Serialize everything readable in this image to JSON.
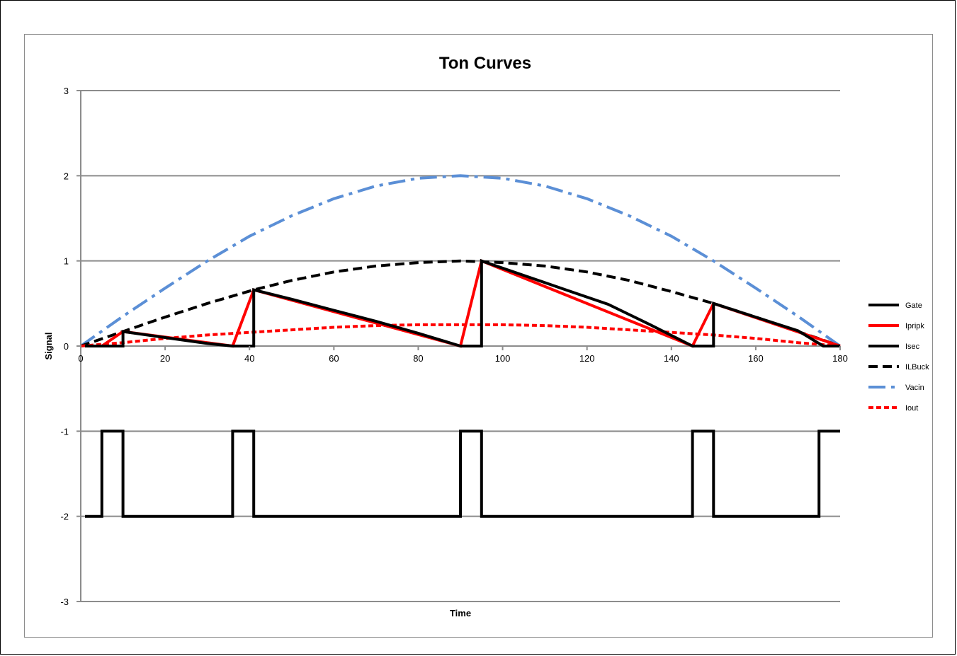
{
  "chart_data": {
    "type": "line",
    "title": "Ton Curves",
    "xlabel": "Time",
    "ylabel": "Signal",
    "xlim": [
      0,
      180
    ],
    "ylim": [
      -3,
      3
    ],
    "x_ticks": [
      0,
      20,
      40,
      60,
      80,
      100,
      120,
      140,
      160,
      180
    ],
    "y_ticks": [
      -3,
      -2,
      -1,
      0,
      1,
      2,
      3
    ],
    "grid": "horizontal",
    "legend_position": "right",
    "series": [
      {
        "name": "Gate",
        "color": "#000000",
        "style": "solid",
        "x": [
          1,
          5,
          5,
          10,
          10,
          36,
          36,
          41,
          41,
          90,
          90,
          95,
          95,
          145,
          145,
          150,
          150,
          175,
          175,
          180
        ],
        "y": [
          -2,
          -2,
          -1,
          -1,
          -2,
          -2,
          -1,
          -1,
          -2,
          -2,
          -1,
          -1,
          -2,
          -2,
          -1,
          -1,
          -2,
          -2,
          -1,
          -1
        ]
      },
      {
        "name": "Ipripk",
        "color": "#ff0000",
        "style": "solid",
        "x": [
          1,
          5,
          10,
          36,
          41,
          90,
          95,
          145,
          150,
          180
        ],
        "y": [
          0,
          0,
          0.17,
          0,
          0.66,
          0,
          1.0,
          0,
          0.5,
          0
        ]
      },
      {
        "name": "Isec",
        "color": "#000000",
        "style": "solid",
        "x": [
          1,
          10,
          10,
          20,
          30,
          36,
          41,
          41,
          50,
          60,
          70,
          80,
          90,
          95,
          95,
          105,
          115,
          125,
          135,
          145,
          150,
          150,
          160,
          170,
          176,
          180
        ],
        "y": [
          0,
          0,
          0.17,
          0.1,
          0.03,
          0,
          0,
          0.66,
          0.55,
          0.42,
          0.29,
          0.15,
          0,
          0,
          1.0,
          0.83,
          0.66,
          0.49,
          0.25,
          0,
          0,
          0.5,
          0.34,
          0.18,
          0,
          0
        ]
      },
      {
        "name": "ILBuck",
        "color": "#000000",
        "style": "dash",
        "x": [
          0,
          10,
          20,
          30,
          41,
          50,
          60,
          70,
          80,
          90,
          100,
          110,
          120,
          130,
          140,
          150,
          160,
          170,
          176,
          180
        ],
        "y": [
          0,
          0.17,
          0.34,
          0.5,
          0.66,
          0.77,
          0.87,
          0.94,
          0.98,
          1.0,
          0.98,
          0.94,
          0.87,
          0.77,
          0.64,
          0.5,
          0.34,
          0.17,
          0.07,
          0
        ]
      },
      {
        "name": "Vacin",
        "color": "#5b8fd6",
        "style": "dashdot",
        "x": [
          0,
          10,
          20,
          30,
          40,
          50,
          60,
          70,
          80,
          90,
          100,
          110,
          120,
          130,
          140,
          150,
          160,
          170,
          180
        ],
        "y": [
          0,
          0.35,
          0.68,
          1.0,
          1.29,
          1.53,
          1.73,
          1.88,
          1.97,
          2.0,
          1.97,
          1.88,
          1.73,
          1.53,
          1.29,
          1.0,
          0.68,
          0.35,
          0
        ]
      },
      {
        "name": "Iout",
        "color": "#ff0000",
        "style": "shortdash",
        "x": [
          0,
          10,
          20,
          30,
          40,
          50,
          60,
          70,
          80,
          90,
          100,
          110,
          120,
          130,
          140,
          150,
          160,
          170,
          180
        ],
        "y": [
          0,
          0.04,
          0.09,
          0.13,
          0.16,
          0.19,
          0.22,
          0.24,
          0.25,
          0.25,
          0.25,
          0.24,
          0.22,
          0.19,
          0.16,
          0.13,
          0.09,
          0.04,
          0
        ]
      }
    ]
  }
}
